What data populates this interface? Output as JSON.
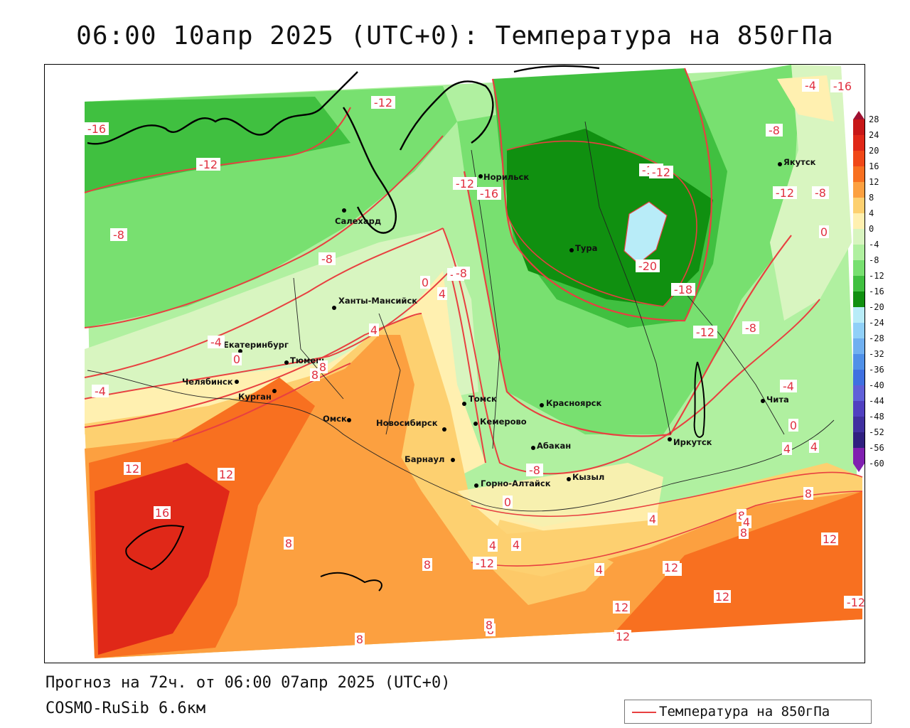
{
  "title": "06:00 10апр 2025 (UTC+0): Температура на 850гПа",
  "footer": {
    "forecast": "Прогноз на 72ч. от 06:00 07апр 2025 (UTC+0)",
    "model": "COSMO-RuSib 6.6км"
  },
  "legend": {
    "label": "Температура на 850гПа",
    "line_color": "#e84040"
  },
  "colorbar": {
    "labels": [
      "28",
      "24",
      "20",
      "16",
      "12",
      "8",
      "4",
      "0",
      "-4",
      "-8",
      "-12",
      "-16",
      "-20",
      "-24",
      "-28",
      "-32",
      "-36",
      "-40",
      "-44",
      "-48",
      "-52",
      "-56",
      "-60"
    ],
    "colors": [
      "#a01030",
      "#c81818",
      "#e02818",
      "#f04818",
      "#f87020",
      "#fca040",
      "#fdd070",
      "#fff0b0",
      "#d8f5c0",
      "#b0f0a0",
      "#78e070",
      "#40c040",
      "#109010",
      "#b8ecf8",
      "#90d0f8",
      "#70b0f0",
      "#5090e8",
      "#4070e0",
      "#6060d8",
      "#5040c0",
      "#4030a0",
      "#302080",
      "#8020b0"
    ]
  },
  "cities": [
    {
      "name": "Салехард"
    },
    {
      "name": "Норильск"
    },
    {
      "name": "Тура"
    },
    {
      "name": "Якутск"
    },
    {
      "name": "Ханты-Мансийск"
    },
    {
      "name": "Екатеринбург"
    },
    {
      "name": "Тюмень"
    },
    {
      "name": "Челябинск"
    },
    {
      "name": "Курган"
    },
    {
      "name": "Омск"
    },
    {
      "name": "Новосибирск"
    },
    {
      "name": "Томск"
    },
    {
      "name": "Кемерово"
    },
    {
      "name": "Красноярск"
    },
    {
      "name": "Барнаул"
    },
    {
      "name": "Абакан"
    },
    {
      "name": "Горно-Алтайск"
    },
    {
      "name": "Кызыл"
    },
    {
      "name": "Иркутск"
    },
    {
      "name": "Чита"
    }
  ],
  "isotherm_labels": [
    "-16",
    "-12",
    "-12",
    "-8",
    "-8",
    "-4",
    "0",
    "-4",
    "-12",
    "-16",
    "-12",
    "-8",
    "-4",
    "0",
    "4",
    "8",
    "12",
    "12",
    "16",
    "8",
    "4",
    "8",
    "12",
    "8",
    "4",
    "-16",
    "-20",
    "-18",
    "-12",
    "-8",
    "-4",
    "0",
    "4",
    "8",
    "12",
    "12",
    "12",
    "-12",
    "-16",
    "-12",
    "-8",
    "-4",
    "8",
    "4",
    "12",
    "12",
    "8",
    "-12",
    "-8",
    "0",
    "0",
    "4",
    "4",
    "4",
    "8",
    "4",
    "8",
    "12",
    "12",
    "-8",
    "8"
  ]
}
